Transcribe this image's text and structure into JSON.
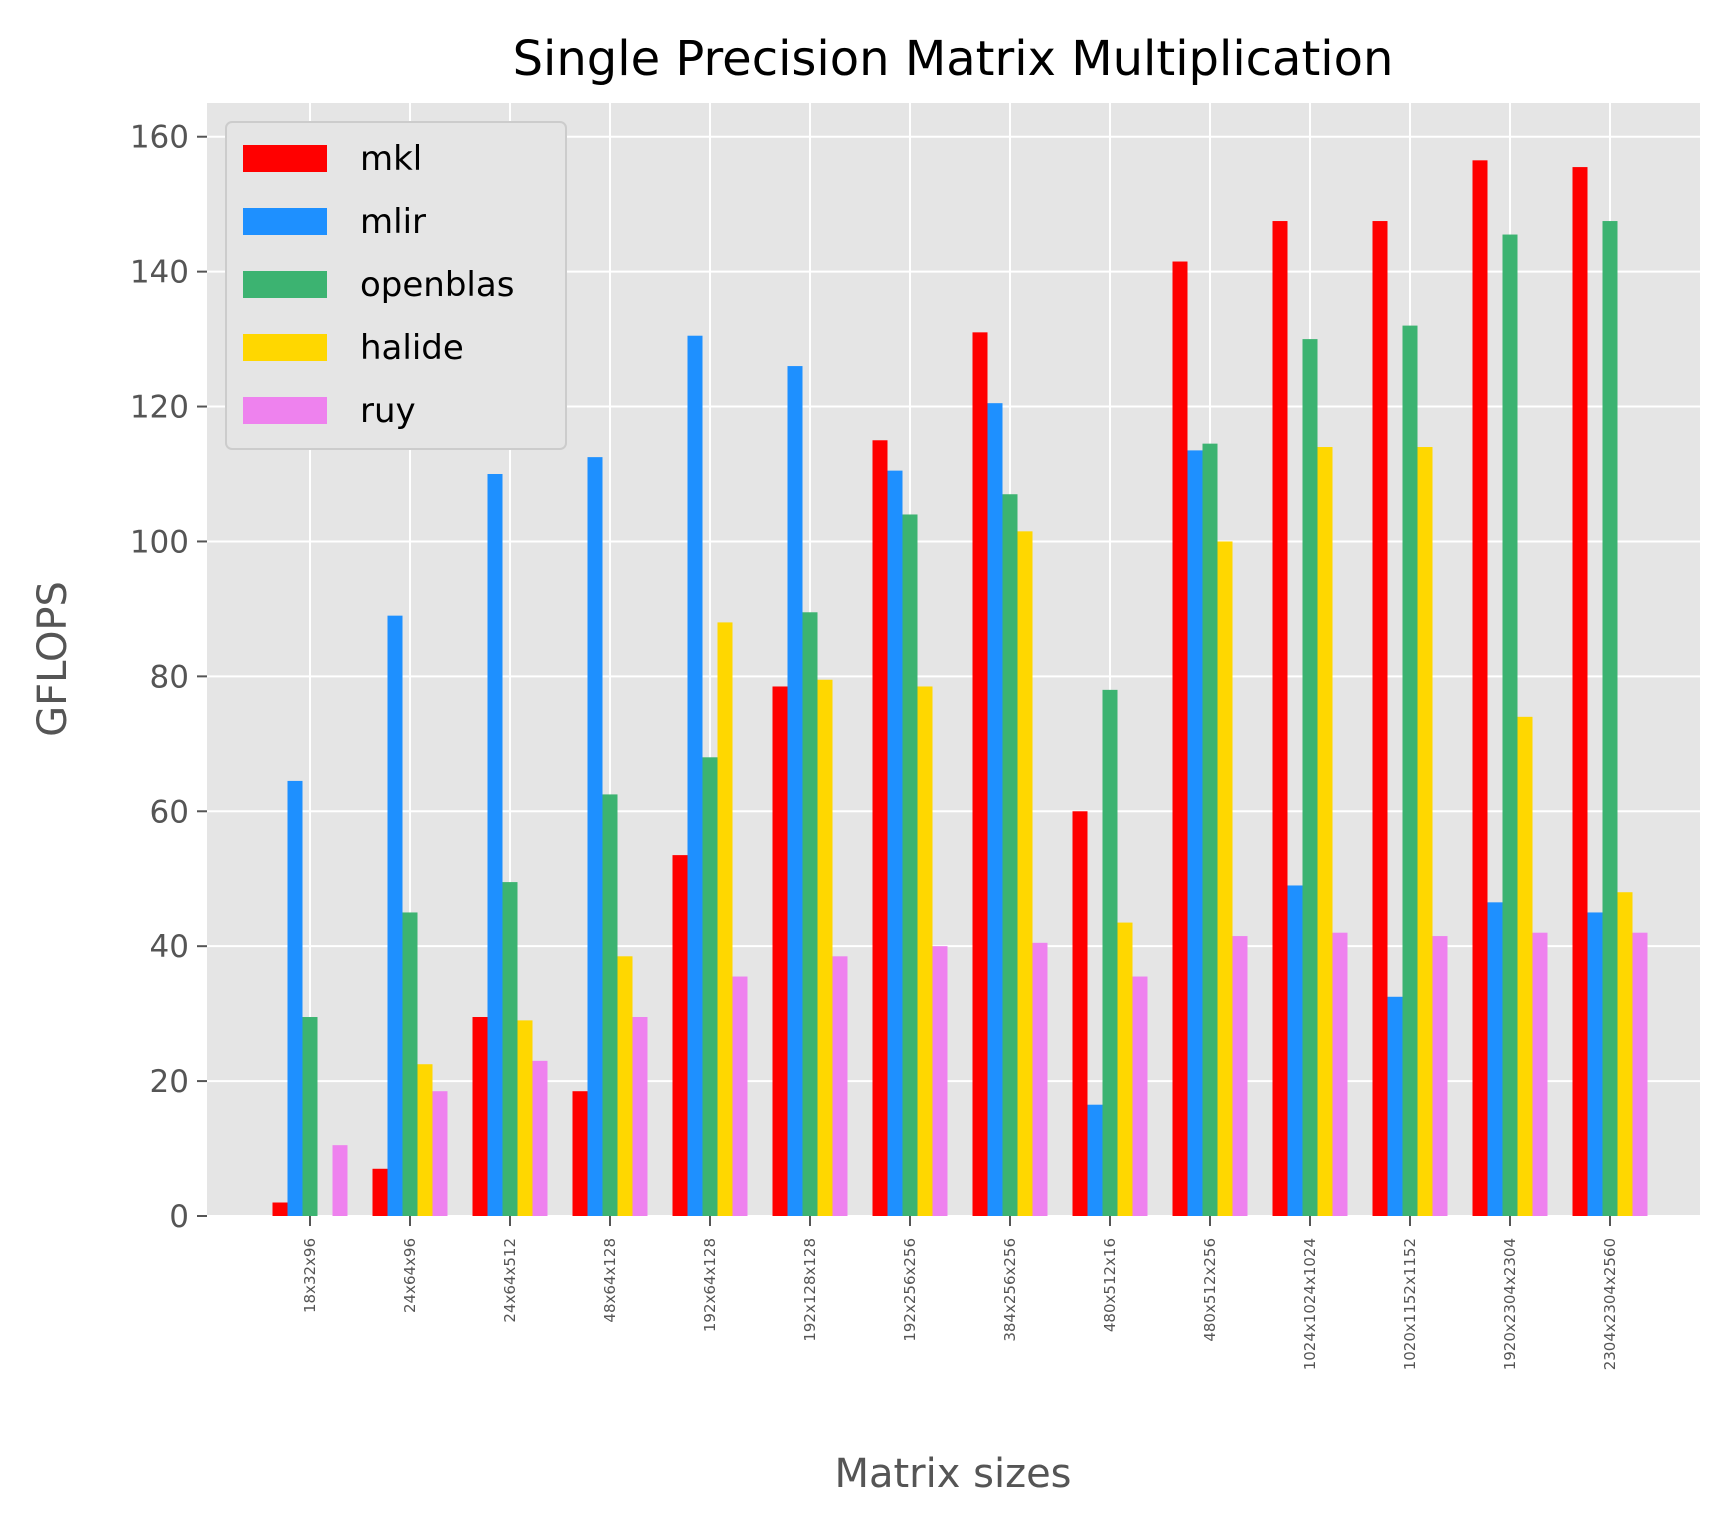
{
  "chart_data": {
    "type": "bar",
    "title": "Single Precision Matrix Multiplication",
    "xlabel": "Matrix sizes",
    "ylabel": "GFLOPS",
    "ylim": [
      0,
      165
    ],
    "yticks": [
      0,
      20,
      40,
      60,
      80,
      100,
      120,
      140,
      160
    ],
    "grid": true,
    "legend_position": "top-left",
    "categories": [
      "18x32x96",
      "24x64x96",
      "24x64x512",
      "48x64x128",
      "192x64x128",
      "192x128x128",
      "192x256x256",
      "384x256x256",
      "480x512x16",
      "480x512x256",
      "1024x1024x1024",
      "1020x1152x1152",
      "1920x2304x2304",
      "2304x2304x2560"
    ],
    "series": [
      {
        "name": "mkl",
        "color": "#ff0000",
        "values": [
          2,
          7,
          29.5,
          18.5,
          53.5,
          78.5,
          115,
          131,
          60,
          141.5,
          147.5,
          147.5,
          156.5,
          155.5
        ]
      },
      {
        "name": "mlir",
        "color": "#1e90ff",
        "values": [
          64.5,
          89,
          110,
          112.5,
          130.5,
          126,
          110.5,
          120.5,
          16.5,
          113.5,
          49,
          32.5,
          46.5,
          45
        ]
      },
      {
        "name": "openblas",
        "color": "#3cb371",
        "values": [
          29.5,
          45,
          49.5,
          62.5,
          68,
          89.5,
          104,
          107,
          78,
          114.5,
          130,
          132,
          145.5,
          147.5
        ]
      },
      {
        "name": "halide",
        "color": "#ffd700",
        "values": [
          0,
          22.5,
          29,
          38.5,
          88,
          79.5,
          78.5,
          101.5,
          43.5,
          100,
          114,
          114,
          74,
          48
        ]
      },
      {
        "name": "ruy",
        "color": "#ee82ee",
        "values": [
          10.5,
          18.5,
          23,
          29.5,
          35.5,
          38.5,
          40,
          40.5,
          35.5,
          41.5,
          42,
          41.5,
          42,
          42
        ]
      }
    ]
  }
}
